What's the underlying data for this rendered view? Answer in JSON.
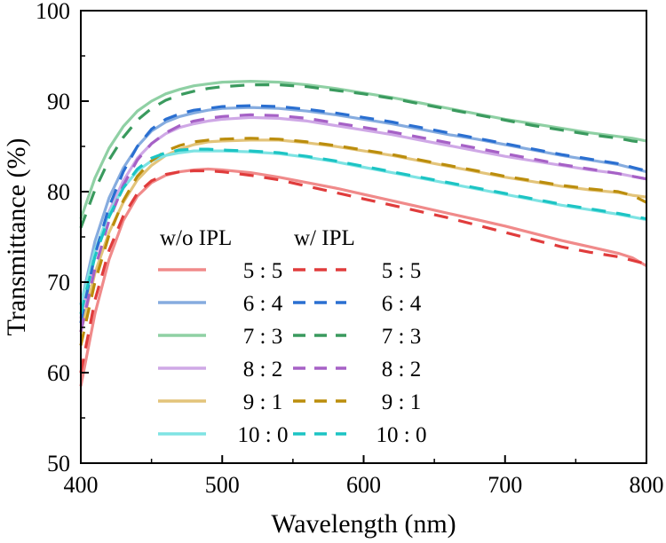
{
  "chart_data": {
    "type": "line",
    "title": "",
    "xlabel": "Wavelength (nm)",
    "ylabel": "Transmittance (%)",
    "xlim": [
      400,
      800
    ],
    "ylim": [
      50,
      100
    ],
    "xticks": [
      "400",
      "500",
      "600",
      "700",
      "800"
    ],
    "yticks": [
      "50",
      "60",
      "70",
      "80",
      "90",
      "100"
    ],
    "grid": false,
    "legend_position": "lower-left",
    "legend_headers": {
      "without": "w/o IPL",
      "with": "w/ IPL"
    },
    "x": [
      400,
      410,
      420,
      430,
      440,
      450,
      460,
      470,
      480,
      490,
      500,
      520,
      540,
      560,
      580,
      600,
      620,
      640,
      660,
      680,
      700,
      720,
      740,
      760,
      780,
      790,
      800
    ],
    "series": [
      {
        "name": "5 : 5",
        "group": "w/o IPL",
        "color": "#f08a8a",
        "dash": false,
        "values": [
          58.5,
          66.5,
          72.5,
          76.8,
          79.5,
          81.0,
          81.8,
          82.2,
          82.4,
          82.5,
          82.4,
          82.1,
          81.6,
          81.0,
          80.4,
          79.7,
          79.0,
          78.3,
          77.6,
          76.9,
          76.2,
          75.4,
          74.6,
          73.9,
          73.2,
          72.7,
          71.8
        ]
      },
      {
        "name": "6 : 4",
        "group": "w/o IPL",
        "color": "#86acdf",
        "dash": false,
        "values": [
          67.5,
          74.5,
          79.3,
          82.6,
          85.0,
          86.7,
          87.7,
          88.3,
          88.7,
          89.0,
          89.2,
          89.3,
          89.2,
          88.9,
          88.5,
          88.0,
          87.5,
          86.9,
          86.3,
          85.8,
          85.2,
          84.6,
          84.0,
          83.5,
          83.0,
          82.6,
          82.2
        ]
      },
      {
        "name": "7 : 3",
        "group": "w/o IPL",
        "color": "#8fd0a4",
        "dash": false,
        "values": [
          77.0,
          81.5,
          84.8,
          87.2,
          88.9,
          90.0,
          90.8,
          91.3,
          91.7,
          91.9,
          92.1,
          92.2,
          92.1,
          91.8,
          91.4,
          90.9,
          90.4,
          89.8,
          89.2,
          88.6,
          88.0,
          87.5,
          87.0,
          86.5,
          86.1,
          85.9,
          85.6
        ]
      },
      {
        "name": "8 : 2",
        "group": "w/o IPL",
        "color": "#cfa8e6",
        "dash": false,
        "values": [
          66.0,
          73.0,
          77.8,
          81.2,
          83.7,
          85.3,
          86.4,
          87.1,
          87.5,
          87.8,
          88.0,
          88.2,
          88.1,
          87.8,
          87.3,
          86.8,
          86.3,
          85.7,
          85.1,
          84.5,
          83.9,
          83.4,
          82.9,
          82.4,
          82.0,
          81.7,
          81.4
        ]
      },
      {
        "name": "9 : 1",
        "group": "w/o IPL",
        "color": "#e3c47a",
        "dash": false,
        "values": [
          64.5,
          71.0,
          75.5,
          78.8,
          81.3,
          82.9,
          84.0,
          84.7,
          85.2,
          85.5,
          85.6,
          85.7,
          85.7,
          85.4,
          85.0,
          84.5,
          84.0,
          83.4,
          82.8,
          82.2,
          81.6,
          81.1,
          80.6,
          80.2,
          79.9,
          79.6,
          79.4
        ]
      },
      {
        "name": "10 : 0",
        "group": "w/o IPL",
        "color": "#7ee3e3",
        "dash": false,
        "values": [
          67.5,
          73.5,
          77.6,
          80.4,
          82.3,
          83.4,
          84.0,
          84.3,
          84.5,
          84.5,
          84.5,
          84.4,
          84.2,
          83.8,
          83.3,
          82.7,
          82.1,
          81.5,
          80.9,
          80.3,
          79.7,
          79.1,
          78.5,
          78.0,
          77.5,
          77.2,
          76.9
        ]
      },
      {
        "name": "5 : 5",
        "group": "w/ IPL",
        "color": "#e03c3c",
        "dash": true,
        "values": [
          60.0,
          68.0,
          73.5,
          77.3,
          79.8,
          81.2,
          81.9,
          82.2,
          82.3,
          82.3,
          82.2,
          81.8,
          81.3,
          80.6,
          79.9,
          79.2,
          78.5,
          77.8,
          77.1,
          76.3,
          75.5,
          74.7,
          73.9,
          73.3,
          72.8,
          72.4,
          72.0
        ]
      },
      {
        "name": "6 : 4",
        "group": "w/ IPL",
        "color": "#2a6fd1",
        "dash": true,
        "values": [
          65.5,
          73.0,
          78.3,
          82.2,
          85.0,
          86.9,
          88.0,
          88.6,
          89.0,
          89.2,
          89.4,
          89.5,
          89.4,
          89.1,
          88.7,
          88.2,
          87.7,
          87.1,
          86.5,
          85.9,
          85.3,
          84.7,
          84.1,
          83.6,
          83.1,
          82.7,
          82.3
        ]
      },
      {
        "name": "7 : 3",
        "group": "w/ IPL",
        "color": "#3a9a5e",
        "dash": true,
        "values": [
          76.0,
          80.2,
          83.5,
          86.0,
          87.9,
          89.2,
          90.1,
          90.7,
          91.1,
          91.4,
          91.6,
          91.8,
          91.8,
          91.6,
          91.2,
          90.8,
          90.3,
          89.7,
          89.1,
          88.5,
          87.9,
          87.3,
          86.8,
          86.3,
          85.9,
          85.6,
          85.4
        ]
      },
      {
        "name": "8 : 2",
        "group": "w/ IPL",
        "color": "#a661c6",
        "dash": true,
        "values": [
          64.5,
          71.5,
          76.8,
          80.7,
          83.5,
          85.3,
          86.5,
          87.3,
          87.8,
          88.1,
          88.3,
          88.5,
          88.4,
          88.1,
          87.6,
          87.1,
          86.6,
          86.0,
          85.4,
          84.8,
          84.2,
          83.6,
          83.0,
          82.5,
          82.0,
          81.7,
          81.4
        ]
      },
      {
        "name": "9 : 1",
        "group": "w/ IPL",
        "color": "#bb8d0c",
        "dash": true,
        "values": [
          63.0,
          70.0,
          75.2,
          79.0,
          81.7,
          83.4,
          84.5,
          85.1,
          85.5,
          85.7,
          85.8,
          85.9,
          85.8,
          85.5,
          85.1,
          84.6,
          84.1,
          83.5,
          82.9,
          82.3,
          81.7,
          81.2,
          80.7,
          80.3,
          80.0,
          79.6,
          78.8
        ]
      },
      {
        "name": "10 : 0",
        "group": "w/ IPL",
        "color": "#1cc4c4",
        "dash": true,
        "values": [
          66.5,
          72.8,
          77.2,
          80.4,
          82.5,
          83.7,
          84.3,
          84.6,
          84.7,
          84.7,
          84.6,
          84.5,
          84.3,
          83.9,
          83.4,
          82.8,
          82.2,
          81.6,
          81.0,
          80.4,
          79.8,
          79.2,
          78.6,
          78.1,
          77.6,
          77.3,
          77.0
        ]
      }
    ]
  }
}
